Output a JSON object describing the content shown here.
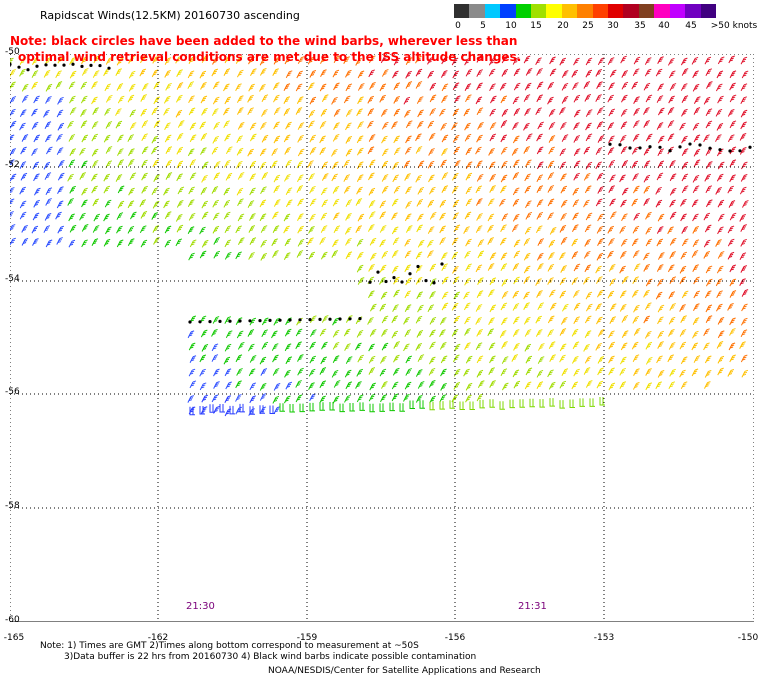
{
  "title": "Rapidscat Winds(12.5KM) 20160730 ascending",
  "note_line1": "Note: black circles have been added to the wind barbs, wherever less than",
  "note_line2": "optimal wind retrieval conditions are met due to the ISS altitude changes.",
  "scale": {
    "labels": [
      "0",
      "5",
      "10",
      "15",
      "20",
      "25",
      "30",
      "35",
      "40",
      "45",
      ">50 knots"
    ],
    "colors": [
      "#303030",
      "#8a8a8a",
      "#00c8ff",
      "#0040ff",
      "#00d000",
      "#a0e000",
      "#ffff00",
      "#ffc000",
      "#ff8000",
      "#ff4000",
      "#e00000",
      "#b00020",
      "#804020",
      "#ff00c0",
      "#c000ff",
      "#7000c0",
      "#400080"
    ]
  },
  "axes": {
    "lat_labels": [
      "-50",
      "-52",
      "-54",
      "-56",
      "-58",
      "-60"
    ],
    "lon_labels": [
      "-165",
      "-162",
      "-159",
      "-156",
      "-153",
      "-150"
    ]
  },
  "times": [
    "21:30",
    "21:31"
  ],
  "footer": {
    "line1": "Note: 1) Times are GMT 2)Times along bottom correspond to measurement at ~50S",
    "line2": "3)Data buffer is 22 hrs from 20160730 4) Black wind barbs indicate possible contamination",
    "line3": "NOAA/NESDIS/Center for Satellite Applications and Research"
  }
}
